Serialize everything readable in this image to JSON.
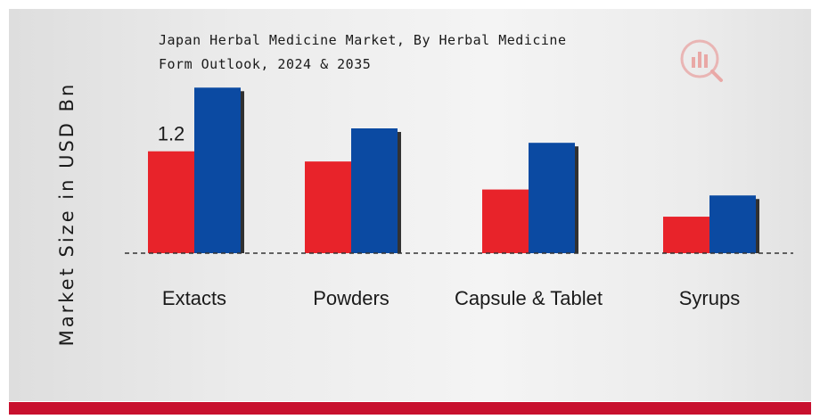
{
  "colors": {
    "series_2024": "#e8232a",
    "series_2035": "#0b4aa2",
    "accent_bar": "#c8102e",
    "logo": "#d9534f"
  },
  "chart_data": {
    "type": "bar",
    "title_lines": [
      "Japan Herbal Medicine Market, By Herbal Medicine",
      "Form Outlook, 2024 & 2035"
    ],
    "ylabel": "Market Size in USD Bn",
    "xlabel": "",
    "categories": [
      "Extacts",
      "Powders",
      "Capsule & Tablet",
      "Syrups"
    ],
    "series": [
      {
        "values": [
          1.2,
          1.08,
          0.75,
          0.43
        ],
        "color": "#e8232a"
      },
      {
        "values": [
          1.95,
          1.47,
          1.3,
          0.68
        ],
        "color": "#0b4aa2"
      }
    ],
    "data_labels": [
      {
        "series": 0,
        "index": 0,
        "text": "1.2"
      }
    ],
    "ylim": [
      0,
      2.1
    ],
    "grid": false,
    "legend": "none",
    "baseline": "dashed"
  },
  "logo": {
    "icon": "analytics-logo-icon"
  }
}
